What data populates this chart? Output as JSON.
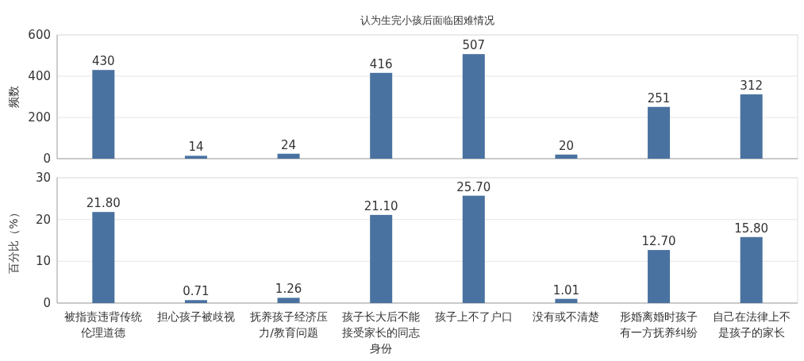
{
  "chart_data": [
    {
      "type": "bar",
      "title": "认为生完小孩后面临困难情况",
      "ylabel": "频数",
      "categories": [
        null,
        null,
        null,
        null,
        null,
        null,
        null,
        null
      ],
      "values": [
        430,
        14,
        24,
        416,
        507,
        20,
        251,
        312
      ],
      "color": "#4a72a0",
      "ylim": [
        0,
        600
      ],
      "yticks": [
        0,
        200,
        400,
        600
      ],
      "grid": "y",
      "data_labels": true,
      "tick_labels": "y"
    },
    {
      "type": "bar",
      "ylabel": "百分比（%）",
      "categories": [
        "被指责违背传统伦理道德",
        "担心孩子被歧视",
        "抚养孩子经济压力/教育问题",
        "孩子长大后不能接受家长的同志身份",
        "孩子上不了户口",
        "没有或不清楚",
        "形婚离婚时孩子有一方抚养纠纷",
        "自己在法律上不是孩子的家长"
      ],
      "values": [
        21.8,
        0.71,
        1.26,
        21.1,
        25.7,
        1.01,
        12.7,
        15.8
      ],
      "value_labels": [
        "21.80",
        "0.71",
        "1.26",
        "21.10",
        "25.70",
        "1.01",
        "12.70",
        "15.80"
      ],
      "color": "#4a72a0",
      "ylim": [
        0,
        30
      ],
      "yticks": [
        0,
        10,
        20,
        30
      ],
      "grid": "y"
    }
  ]
}
